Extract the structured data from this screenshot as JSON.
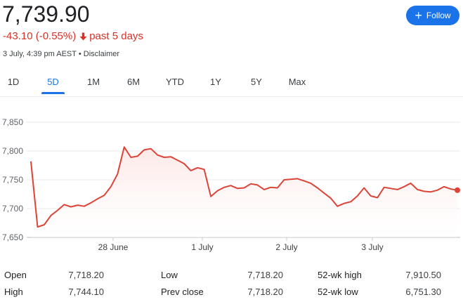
{
  "quote": {
    "price": "7,739.90",
    "change": "-43.10 (-0.55%)",
    "period": "past 5 days",
    "timestamp": "3 July, 4:39 pm AEST",
    "separator": "•",
    "disclaimer": "Disclaimer"
  },
  "follow": {
    "label": "Follow",
    "icon": "plus-icon"
  },
  "tabs": [
    {
      "label": "1D",
      "active": false
    },
    {
      "label": "5D",
      "active": true
    },
    {
      "label": "1M",
      "active": false
    },
    {
      "label": "6M",
      "active": false
    },
    {
      "label": "YTD",
      "active": false
    },
    {
      "label": "1Y",
      "active": false
    },
    {
      "label": "5Y",
      "active": false
    },
    {
      "label": "Max",
      "active": false
    }
  ],
  "colors": {
    "line": "#db4437",
    "fill_top": "#fce8e6",
    "accent": "#1a73e8",
    "negative": "#d93025",
    "grid": "#e8eaed"
  },
  "chart_data": {
    "type": "area",
    "y_ticks": [
      "7,850",
      "7,800",
      "7,750",
      "7,700",
      "7,650"
    ],
    "ylim": [
      7650,
      7850
    ],
    "x_ticks": [
      "28 June",
      "1 July",
      "2 July",
      "3 July"
    ],
    "grid": true,
    "series": [
      {
        "values": [
          7782,
          7668,
          7672,
          7688,
          7697,
          7707,
          7703,
          7706,
          7704,
          7710,
          7717,
          7723,
          7738,
          7760,
          7807,
          7789,
          7791,
          7802,
          7804,
          7793,
          7789,
          7790,
          7784,
          7778,
          7766,
          7771,
          7768,
          7721,
          7731,
          7737,
          7740,
          7735,
          7736,
          7743,
          7741,
          7733,
          7737,
          7736,
          7750,
          7751,
          7752,
          7748,
          7744,
          7736,
          7727,
          7718,
          7704,
          7709,
          7712,
          7722,
          7736,
          7722,
          7719,
          7737,
          7735,
          7733,
          7738,
          7744,
          7733,
          7730,
          7729,
          7732,
          7738,
          7734,
          7732
        ]
      }
    ],
    "last_value": 7732
  },
  "stats": {
    "open_label": "Open",
    "open_value": "7,718.20",
    "high_label": "High",
    "high_value": "7,744.10",
    "low_label": "Low",
    "low_value": "7,718.20",
    "prev_close_label": "Prev close",
    "prev_close_value": "7,718.20",
    "wk52_high_label": "52-wk high",
    "wk52_high_value": "7,910.50",
    "wk52_low_label": "52-wk low",
    "wk52_low_value": "6,751.30"
  }
}
